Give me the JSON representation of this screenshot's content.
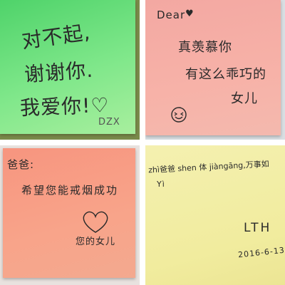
{
  "notes": {
    "green": {
      "line1": "对不起,",
      "line2": "谢谢你.",
      "line3": "我爱你!♡",
      "signature": "DZX"
    },
    "pink": {
      "greeting": "Dear",
      "heart": "♥",
      "line1": "真羡慕你",
      "line2": "有这么乖巧的",
      "line3": "女儿",
      "face": "ʚ̈"
    },
    "salmon": {
      "greeting": "爸爸:",
      "line1": "希望您能戒烟成功",
      "signature": "您的女儿"
    },
    "yellow": {
      "line1": "zhì爸爸 shen 体 jiàngāng,万事如",
      "line2": "Yì",
      "signature": "LTH",
      "date": "2016-6-13"
    }
  },
  "colors": {
    "green": "#6fe07e",
    "pink": "#f7b2a8",
    "salmon": "#f8a48a",
    "yellow": "#f1ec9e",
    "ink": "#2a2a2a"
  }
}
